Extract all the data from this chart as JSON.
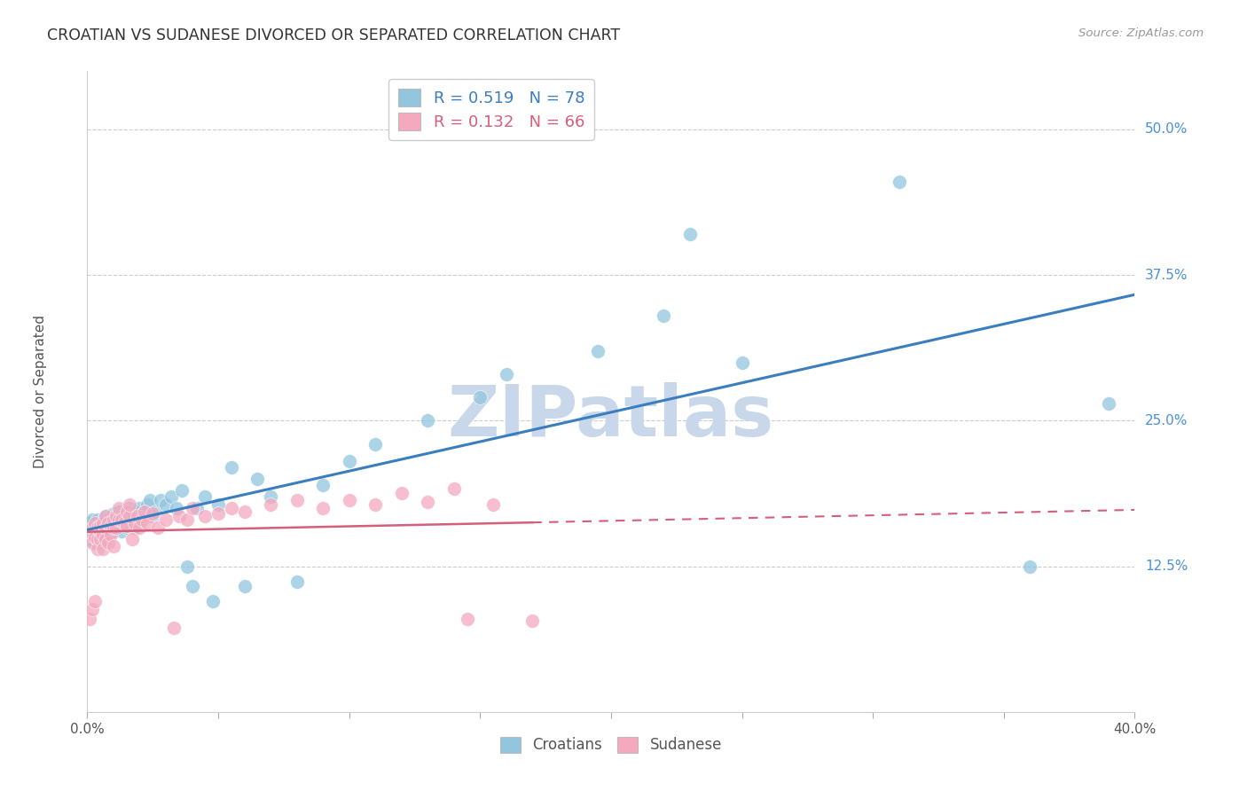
{
  "title": "CROATIAN VS SUDANESE DIVORCED OR SEPARATED CORRELATION CHART",
  "source": "Source: ZipAtlas.com",
  "ylabel": "Divorced or Separated",
  "xlim": [
    0.0,
    0.4
  ],
  "ylim": [
    0.0,
    0.55
  ],
  "yticks": [
    0.0,
    0.125,
    0.25,
    0.375,
    0.5
  ],
  "ytick_labels": [
    "",
    "12.5%",
    "25.0%",
    "37.5%",
    "50.0%"
  ],
  "xtick_positions": [
    0.0,
    0.05,
    0.1,
    0.15,
    0.2,
    0.25,
    0.3,
    0.35,
    0.4
  ],
  "xtick_labels": [
    "0.0%",
    "",
    "",
    "",
    "",
    "",
    "",
    "",
    "40.0%"
  ],
  "croatian_R": 0.519,
  "croatian_N": 78,
  "sudanese_R": 0.132,
  "sudanese_N": 66,
  "blue_color": "#92c5de",
  "pink_color": "#f4a9bf",
  "blue_line_color": "#3a7ebf",
  "pink_line_color": "#d45f7a",
  "grid_color": "#cccccc",
  "watermark_color": "#c8d8ea",
  "croatian_x": [
    0.001,
    0.001,
    0.001,
    0.002,
    0.002,
    0.002,
    0.003,
    0.003,
    0.003,
    0.004,
    0.004,
    0.004,
    0.005,
    0.005,
    0.005,
    0.006,
    0.006,
    0.006,
    0.007,
    0.007,
    0.007,
    0.008,
    0.008,
    0.009,
    0.009,
    0.01,
    0.01,
    0.011,
    0.011,
    0.012,
    0.012,
    0.013,
    0.013,
    0.014,
    0.015,
    0.015,
    0.016,
    0.016,
    0.017,
    0.018,
    0.018,
    0.019,
    0.02,
    0.021,
    0.022,
    0.023,
    0.024,
    0.025,
    0.026,
    0.028,
    0.03,
    0.032,
    0.034,
    0.036,
    0.038,
    0.04,
    0.042,
    0.045,
    0.048,
    0.05,
    0.055,
    0.06,
    0.065,
    0.07,
    0.08,
    0.09,
    0.1,
    0.11,
    0.13,
    0.15,
    0.16,
    0.195,
    0.22,
    0.23,
    0.25,
    0.31,
    0.36,
    0.39
  ],
  "croatian_y": [
    0.155,
    0.162,
    0.148,
    0.158,
    0.15,
    0.165,
    0.155,
    0.16,
    0.145,
    0.158,
    0.152,
    0.165,
    0.15,
    0.16,
    0.145,
    0.158,
    0.165,
    0.155,
    0.16,
    0.148,
    0.168,
    0.155,
    0.162,
    0.158,
    0.168,
    0.155,
    0.17,
    0.162,
    0.17,
    0.158,
    0.172,
    0.155,
    0.165,
    0.168,
    0.158,
    0.172,
    0.162,
    0.175,
    0.165,
    0.158,
    0.172,
    0.168,
    0.175,
    0.168,
    0.172,
    0.178,
    0.182,
    0.168,
    0.172,
    0.182,
    0.178,
    0.185,
    0.175,
    0.19,
    0.125,
    0.108,
    0.175,
    0.185,
    0.095,
    0.178,
    0.21,
    0.108,
    0.2,
    0.185,
    0.112,
    0.195,
    0.215,
    0.23,
    0.25,
    0.27,
    0.29,
    0.31,
    0.34,
    0.41,
    0.3,
    0.455,
    0.125,
    0.265
  ],
  "sudanese_x": [
    0.001,
    0.001,
    0.002,
    0.002,
    0.002,
    0.003,
    0.003,
    0.003,
    0.004,
    0.004,
    0.004,
    0.005,
    0.005,
    0.005,
    0.006,
    0.006,
    0.006,
    0.007,
    0.007,
    0.007,
    0.008,
    0.008,
    0.009,
    0.009,
    0.01,
    0.01,
    0.01,
    0.011,
    0.011,
    0.012,
    0.012,
    0.013,
    0.014,
    0.015,
    0.015,
    0.016,
    0.016,
    0.017,
    0.018,
    0.019,
    0.02,
    0.021,
    0.022,
    0.023,
    0.025,
    0.027,
    0.03,
    0.033,
    0.035,
    0.038,
    0.04,
    0.045,
    0.05,
    0.055,
    0.06,
    0.07,
    0.08,
    0.09,
    0.1,
    0.11,
    0.12,
    0.13,
    0.14,
    0.145,
    0.155,
    0.17
  ],
  "sudanese_y": [
    0.152,
    0.08,
    0.158,
    0.145,
    0.088,
    0.15,
    0.162,
    0.095,
    0.148,
    0.158,
    0.14,
    0.155,
    0.148,
    0.16,
    0.152,
    0.162,
    0.14,
    0.158,
    0.168,
    0.148,
    0.162,
    0.145,
    0.16,
    0.152,
    0.158,
    0.165,
    0.142,
    0.168,
    0.158,
    0.165,
    0.175,
    0.165,
    0.162,
    0.16,
    0.172,
    0.168,
    0.178,
    0.148,
    0.162,
    0.168,
    0.158,
    0.165,
    0.172,
    0.162,
    0.17,
    0.158,
    0.165,
    0.072,
    0.168,
    0.165,
    0.175,
    0.168,
    0.17,
    0.175,
    0.172,
    0.178,
    0.182,
    0.175,
    0.182,
    0.178,
    0.188,
    0.18,
    0.192,
    0.08,
    0.178,
    0.078
  ]
}
